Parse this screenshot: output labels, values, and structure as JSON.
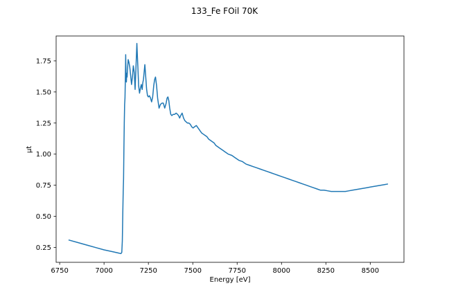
{
  "chart_data": {
    "type": "line",
    "title": "133_Fe FOil 70K",
    "xlabel": "Energy [eV]",
    "ylabel": "μt",
    "xlim": [
      6730,
      8690
    ],
    "ylim": [
      0.13,
      1.95
    ],
    "xticks": [
      6750,
      7000,
      7250,
      7500,
      7750,
      8000,
      8250,
      8500
    ],
    "yticks": [
      0.25,
      0.5,
      0.75,
      1.0,
      1.25,
      1.5,
      1.75
    ],
    "xtick_labels": [
      "6750",
      "7000",
      "7250",
      "7500",
      "7750",
      "8000",
      "8250",
      "8500"
    ],
    "ytick_labels": [
      "0.25",
      "0.50",
      "0.75",
      "1.00",
      "1.25",
      "1.50",
      "1.75"
    ],
    "grid": false,
    "line_color": "#1f77b4",
    "series": [
      {
        "x": [
          6800,
          6850,
          6900,
          6950,
          7000,
          7050,
          7080,
          7095,
          7100,
          7103,
          7106,
          7108,
          7110,
          7112,
          7114,
          7116,
          7118,
          7120,
          7122,
          7124,
          7126,
          7128,
          7130,
          7133,
          7136,
          7140,
          7145,
          7150,
          7155,
          7160,
          7165,
          7170,
          7175,
          7180,
          7185,
          7190,
          7195,
          7200,
          7205,
          7210,
          7215,
          7218,
          7222,
          7226,
          7230,
          7235,
          7240,
          7245,
          7250,
          7256,
          7262,
          7268,
          7274,
          7280,
          7285,
          7290,
          7296,
          7302,
          7310,
          7318,
          7326,
          7334,
          7342,
          7350,
          7355,
          7360,
          7365,
          7370,
          7376,
          7382,
          7390,
          7398,
          7406,
          7414,
          7420,
          7426,
          7432,
          7440,
          7448,
          7455,
          7462,
          7470,
          7478,
          7486,
          7494,
          7502,
          7510,
          7520,
          7530,
          7540,
          7550,
          7560,
          7570,
          7580,
          7590,
          7600,
          7610,
          7620,
          7630,
          7640,
          7650,
          7660,
          7670,
          7680,
          7690,
          7700,
          7720,
          7740,
          7760,
          7780,
          7800,
          7820,
          7840,
          7860,
          7880,
          7900,
          7920,
          7940,
          7960,
          7980,
          8000,
          8020,
          8040,
          8060,
          8080,
          8100,
          8120,
          8140,
          8160,
          8180,
          8200,
          8220,
          8240,
          8260,
          8280,
          8300,
          8320,
          8340,
          8360,
          8380,
          8400,
          8420,
          8440,
          8460,
          8480,
          8500,
          8520,
          8540,
          8560,
          8580,
          8600
        ],
        "y": [
          0.31,
          0.29,
          0.27,
          0.25,
          0.23,
          0.215,
          0.205,
          0.2,
          0.21,
          0.3,
          0.55,
          0.7,
          0.8,
          1.05,
          1.25,
          1.4,
          1.45,
          1.6,
          1.8,
          1.63,
          1.58,
          1.65,
          1.62,
          1.7,
          1.76,
          1.74,
          1.7,
          1.63,
          1.56,
          1.62,
          1.71,
          1.66,
          1.52,
          1.7,
          1.89,
          1.72,
          1.55,
          1.49,
          1.53,
          1.56,
          1.52,
          1.57,
          1.6,
          1.66,
          1.72,
          1.62,
          1.52,
          1.47,
          1.46,
          1.47,
          1.45,
          1.42,
          1.46,
          1.55,
          1.6,
          1.62,
          1.55,
          1.45,
          1.37,
          1.4,
          1.41,
          1.41,
          1.37,
          1.41,
          1.45,
          1.46,
          1.43,
          1.37,
          1.32,
          1.31,
          1.32,
          1.32,
          1.33,
          1.32,
          1.31,
          1.29,
          1.31,
          1.33,
          1.29,
          1.27,
          1.26,
          1.25,
          1.25,
          1.24,
          1.22,
          1.21,
          1.22,
          1.23,
          1.21,
          1.19,
          1.17,
          1.16,
          1.15,
          1.14,
          1.12,
          1.11,
          1.1,
          1.09,
          1.07,
          1.06,
          1.05,
          1.04,
          1.03,
          1.02,
          1.01,
          1.0,
          0.99,
          0.97,
          0.95,
          0.94,
          0.92,
          0.91,
          0.9,
          0.89,
          0.88,
          0.87,
          0.86,
          0.85,
          0.84,
          0.83,
          0.82,
          0.81,
          0.8,
          0.79,
          0.78,
          0.77,
          0.76,
          0.75,
          0.74,
          0.73,
          0.72,
          0.71,
          0.71,
          0.705,
          0.7,
          0.7,
          0.7,
          0.7,
          0.7,
          0.705,
          0.71,
          0.715,
          0.72,
          0.725,
          0.73,
          0.735,
          0.74,
          0.745,
          0.75,
          0.755,
          0.76
        ]
      }
    ]
  }
}
